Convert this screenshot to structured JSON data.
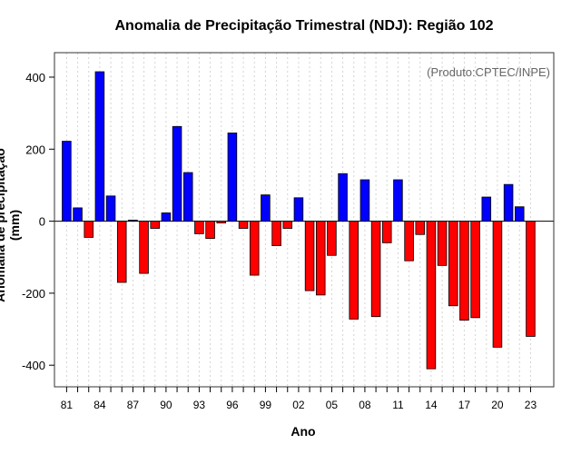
{
  "chart_data": {
    "type": "bar",
    "title": "Anomalia de Precipitação Trimestral (NDJ): Região 102",
    "xlabel": "Ano",
    "ylabel": "Anomalia de precipitação (mm)",
    "annotation": "(Produto:CPTEC/INPE)",
    "years": [
      1981,
      1982,
      1983,
      1984,
      1985,
      1986,
      1987,
      1988,
      1989,
      1990,
      1991,
      1992,
      1993,
      1994,
      1995,
      1996,
      1997,
      1998,
      1999,
      2000,
      2001,
      2002,
      2003,
      2004,
      2005,
      2006,
      2007,
      2008,
      2009,
      2010,
      2011,
      2012,
      2013,
      2014,
      2015,
      2016,
      2017,
      2018,
      2019,
      2020,
      2021,
      2022,
      2023
    ],
    "values": [
      222,
      37,
      -45,
      415,
      70,
      -170,
      3,
      -145,
      -20,
      23,
      263,
      135,
      -35,
      -48,
      -5,
      245,
      -20,
      -150,
      73,
      -68,
      -20,
      65,
      -193,
      -205,
      -95,
      132,
      -272,
      115,
      -265,
      -60,
      115,
      -110,
      -37,
      -410,
      -123,
      -235,
      -275,
      -268,
      67,
      -350,
      102,
      40,
      -320
    ],
    "xtick_labels": [
      "81",
      "84",
      "87",
      "90",
      "93",
      "96",
      "99",
      "02",
      "05",
      "08",
      "11",
      "14",
      "17",
      "20",
      "23"
    ],
    "yticks": [
      -400,
      -200,
      0,
      200,
      400
    ],
    "ylim": [
      -460,
      468
    ],
    "xlim": [
      1979.9,
      2025.1
    ],
    "grid": true,
    "positive_color": "#0000FF",
    "negative_color": "#FF0000"
  }
}
